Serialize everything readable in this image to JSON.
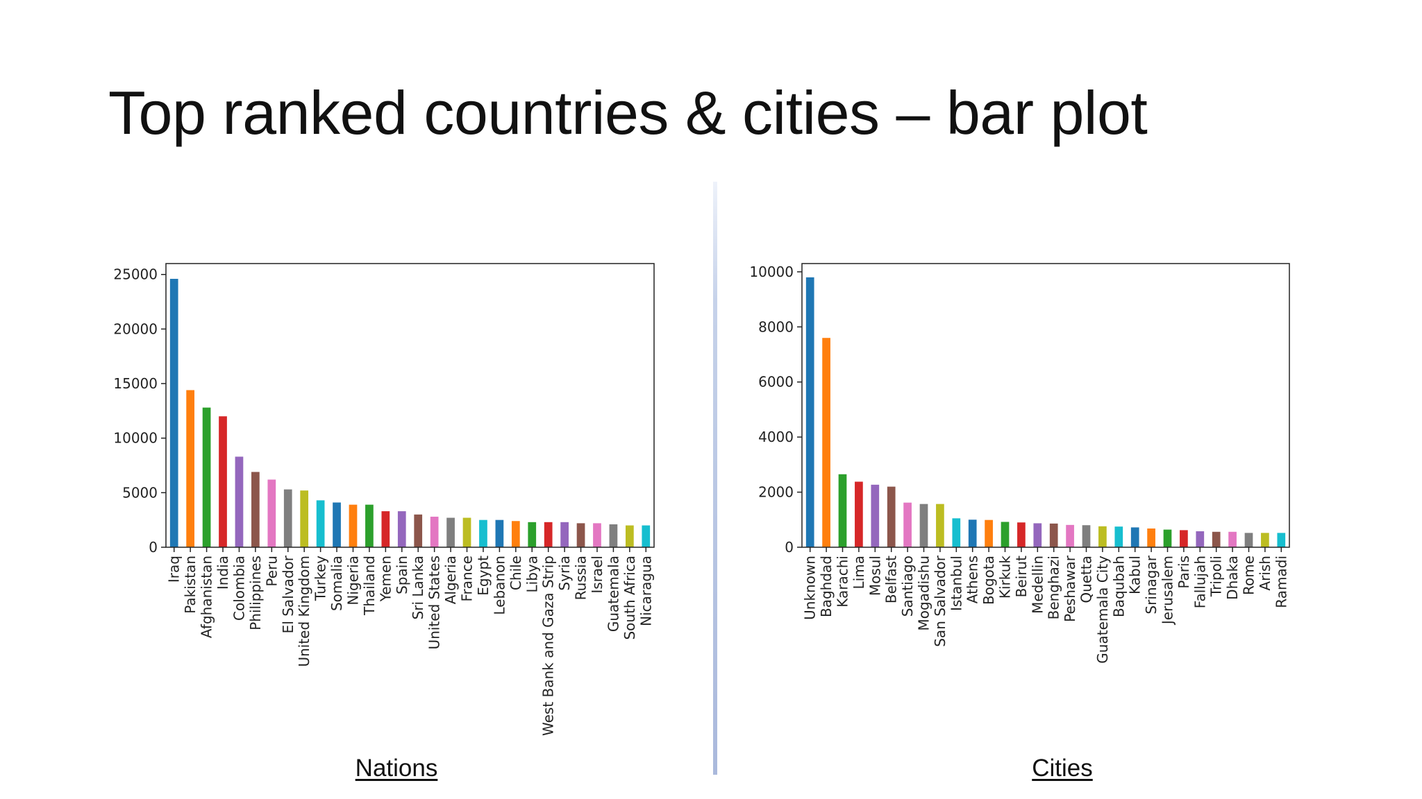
{
  "slide": {
    "title": "Top ranked countries & cities – bar plot"
  },
  "captions": {
    "left": "Nations",
    "right": "Cities"
  },
  "palette": [
    "#1f77b4",
    "#ff7f0e",
    "#2ca02c",
    "#d62728",
    "#9467bd",
    "#8c564b",
    "#e377c2",
    "#7f7f7f",
    "#bcbd22",
    "#17becf"
  ],
  "chart_data": [
    {
      "type": "bar",
      "title": "",
      "xlabel": "",
      "ylabel": "",
      "ylim": [
        0,
        26000
      ],
      "yticks": [
        0,
        5000,
        10000,
        15000,
        20000,
        25000
      ],
      "grid": false,
      "categories": [
        "Iraq",
        "Pakistan",
        "Afghanistan",
        "India",
        "Colombia",
        "Philippines",
        "Peru",
        "El Salvador",
        "United Kingdom",
        "Turkey",
        "Somalia",
        "Nigeria",
        "Thailand",
        "Yemen",
        "Spain",
        "Sri Lanka",
        "United States",
        "Algeria",
        "France",
        "Egypt",
        "Lebanon",
        "Chile",
        "Libya",
        "West Bank and Gaza Strip",
        "Syria",
        "Russia",
        "Israel",
        "Guatemala",
        "South Africa",
        "Nicaragua"
      ],
      "values": [
        24600,
        14400,
        12800,
        12000,
        8300,
        6900,
        6200,
        5300,
        5200,
        4300,
        4100,
        3900,
        3900,
        3300,
        3300,
        3000,
        2800,
        2700,
        2700,
        2500,
        2500,
        2400,
        2300,
        2300,
        2300,
        2200,
        2200,
        2100,
        2000,
        2000
      ]
    },
    {
      "type": "bar",
      "title": "",
      "xlabel": "",
      "ylabel": "",
      "ylim": [
        0,
        10300
      ],
      "yticks": [
        0,
        2000,
        4000,
        6000,
        8000,
        10000
      ],
      "grid": false,
      "categories": [
        "Unknown",
        "Baghdad",
        "Karachi",
        "Lima",
        "Mosul",
        "Belfast",
        "Santiago",
        "Mogadishu",
        "San Salvador",
        "Istanbul",
        "Athens",
        "Bogota",
        "Kirkuk",
        "Beirut",
        "Medellin",
        "Benghazi",
        "Peshawar",
        "Quetta",
        "Guatemala City",
        "Baqubah",
        "Kabul",
        "Srinagar",
        "Jerusalem",
        "Paris",
        "Fallujah",
        "Tripoli",
        "Dhaka",
        "Rome",
        "Arish",
        "Ramadi"
      ],
      "values": [
        9800,
        7600,
        2650,
        2380,
        2270,
        2200,
        1620,
        1570,
        1570,
        1050,
        1000,
        990,
        920,
        900,
        870,
        860,
        810,
        800,
        760,
        750,
        720,
        680,
        640,
        620,
        580,
        560,
        560,
        520,
        520,
        520
      ]
    }
  ]
}
